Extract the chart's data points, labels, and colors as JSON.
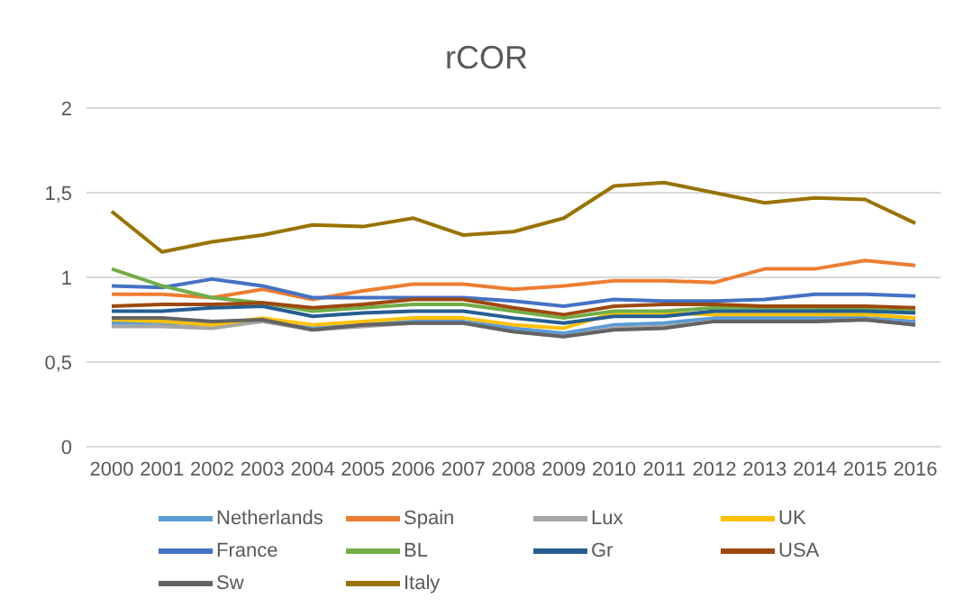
{
  "chart_data": {
    "type": "line",
    "title": "rCOR",
    "categories": [
      "2000",
      "2001",
      "2002",
      "2003",
      "2004",
      "2005",
      "2006",
      "2007",
      "2008",
      "2009",
      "2010",
      "2011",
      "2012",
      "2013",
      "2014",
      "2015",
      "2016"
    ],
    "ylim": [
      0,
      2
    ],
    "yticks": [
      0,
      {
        "value": 0.5,
        "label": "0,5"
      },
      1,
      {
        "value": 1.5,
        "label": "1,5"
      },
      2
    ],
    "grid": "y",
    "legend": "bottom",
    "marker": "none",
    "series": [
      {
        "name": "Netherlands",
        "color": "#5b9bd5",
        "values": [
          0.73,
          0.73,
          0.72,
          0.74,
          0.7,
          0.72,
          0.74,
          0.74,
          0.7,
          0.67,
          0.72,
          0.73,
          0.76,
          0.76,
          0.76,
          0.76,
          0.74
        ]
      },
      {
        "name": "Spain",
        "color": "#ed7d31",
        "values": [
          0.9,
          0.9,
          0.88,
          0.93,
          0.87,
          0.92,
          0.96,
          0.96,
          0.93,
          0.95,
          0.98,
          0.98,
          0.97,
          1.05,
          1.05,
          1.1,
          1.07
        ]
      },
      {
        "name": "Lux",
        "color": "#a5a5a5",
        "values": [
          0.71,
          0.71,
          0.7,
          0.74,
          0.69,
          0.71,
          0.73,
          0.73,
          0.68,
          0.65,
          0.7,
          0.71,
          0.74,
          0.74,
          0.74,
          0.75,
          0.72
        ]
      },
      {
        "name": "UK",
        "color": "#ffc000",
        "values": [
          0.75,
          0.74,
          0.72,
          0.76,
          0.72,
          0.74,
          0.76,
          0.76,
          0.72,
          0.7,
          0.79,
          0.79,
          0.78,
          0.78,
          0.78,
          0.78,
          0.76
        ]
      },
      {
        "name": "France",
        "color": "#4472c4",
        "values": [
          0.95,
          0.94,
          0.99,
          0.95,
          0.88,
          0.88,
          0.88,
          0.88,
          0.86,
          0.83,
          0.87,
          0.86,
          0.86,
          0.87,
          0.9,
          0.9,
          0.89
        ]
      },
      {
        "name": "BL",
        "color": "#70ad47",
        "values": [
          1.05,
          0.95,
          0.88,
          0.85,
          0.8,
          0.82,
          0.84,
          0.84,
          0.8,
          0.76,
          0.8,
          0.8,
          0.82,
          0.82,
          0.82,
          0.81,
          0.8
        ]
      },
      {
        "name": "Gr",
        "color": "#255e91",
        "values": [
          0.8,
          0.8,
          0.82,
          0.83,
          0.77,
          0.79,
          0.8,
          0.8,
          0.76,
          0.73,
          0.77,
          0.77,
          0.8,
          0.8,
          0.8,
          0.8,
          0.79
        ]
      },
      {
        "name": "USA",
        "color": "#9e480e",
        "values": [
          0.83,
          0.84,
          0.84,
          0.85,
          0.82,
          0.84,
          0.87,
          0.87,
          0.82,
          0.78,
          0.83,
          0.84,
          0.84,
          0.83,
          0.83,
          0.83,
          0.82
        ]
      },
      {
        "name": "Sw",
        "color": "#636363",
        "values": [
          0.76,
          0.76,
          0.74,
          0.75,
          0.69,
          0.72,
          0.73,
          0.73,
          0.68,
          0.65,
          0.69,
          0.7,
          0.74,
          0.74,
          0.74,
          0.75,
          0.72
        ]
      },
      {
        "name": "Italy",
        "color": "#997300",
        "values": [
          1.39,
          1.15,
          1.21,
          1.25,
          1.31,
          1.3,
          1.35,
          1.25,
          1.27,
          1.35,
          1.54,
          1.56,
          1.5,
          1.44,
          1.47,
          1.46,
          1.32
        ]
      }
    ]
  }
}
